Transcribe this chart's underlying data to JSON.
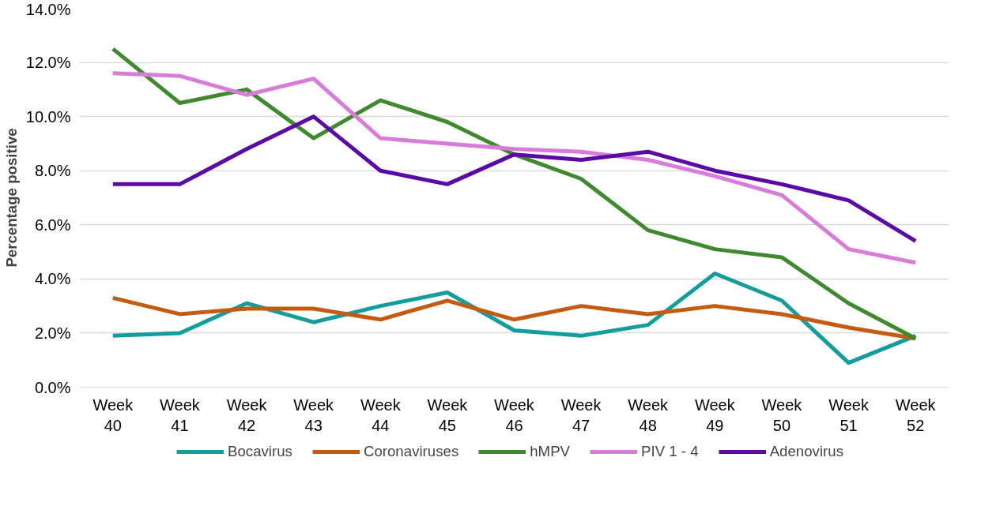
{
  "chart_data": {
    "type": "line",
    "ylabel": "Percentage positive",
    "categories": [
      "Week 40",
      "Week 41",
      "Week 42",
      "Week 43",
      "Week 44",
      "Week 45",
      "Week 46",
      "Week 47",
      "Week 48",
      "Week 49",
      "Week 50",
      "Week 51",
      "Week 52"
    ],
    "series": [
      {
        "name": "Bocavirus",
        "color": "#139d9d",
        "values": [
          1.9,
          2.0,
          3.1,
          2.4,
          3.0,
          3.5,
          2.1,
          1.9,
          2.3,
          4.2,
          3.2,
          0.9,
          1.9
        ]
      },
      {
        "name": "Coronaviruses",
        "color": "#c55a11",
        "values": [
          3.3,
          2.7,
          2.9,
          2.9,
          2.5,
          3.2,
          2.5,
          3.0,
          2.7,
          3.0,
          2.7,
          2.2,
          1.8
        ]
      },
      {
        "name": "hMPV",
        "color": "#3f8a2f",
        "values": [
          12.5,
          10.5,
          11.0,
          9.2,
          10.6,
          9.8,
          8.6,
          7.7,
          5.8,
          5.1,
          4.8,
          3.1,
          1.8
        ]
      },
      {
        "name": "PIV 1 - 4",
        "color": "#d97bd9",
        "values": [
          11.6,
          11.5,
          10.8,
          11.4,
          9.2,
          9.0,
          8.8,
          8.7,
          8.4,
          7.8,
          7.1,
          5.1,
          4.6
        ]
      },
      {
        "name": "Adenovirus",
        "color": "#5b0aa8",
        "values": [
          7.5,
          7.5,
          8.8,
          10.0,
          8.0,
          7.5,
          8.6,
          8.4,
          8.7,
          8.0,
          7.5,
          6.9,
          5.4
        ]
      }
    ],
    "ylim": [
      0,
      14
    ],
    "yticks": [
      {
        "value": 0,
        "label": "0.0%"
      },
      {
        "value": 2,
        "label": "2.0%"
      },
      {
        "value": 4,
        "label": "4.0%"
      },
      {
        "value": 6,
        "label": "6.0%"
      },
      {
        "value": 8,
        "label": "8.0%"
      },
      {
        "value": 10,
        "label": "10.0%"
      },
      {
        "value": 12,
        "label": "12.0%"
      },
      {
        "value": 14,
        "label": "14.0%"
      }
    ],
    "grid": "y",
    "legend": "bottom",
    "marker": "none",
    "line_style": "solid"
  }
}
